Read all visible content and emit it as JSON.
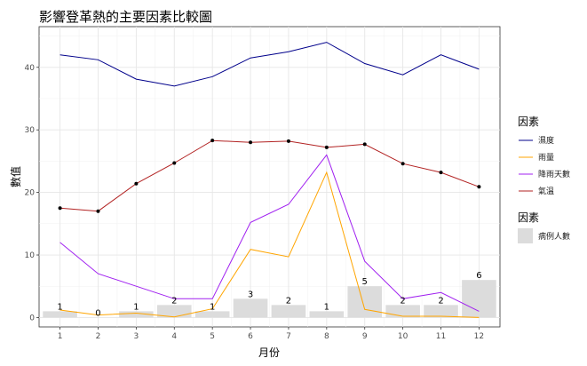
{
  "chart_data": {
    "type": "line",
    "title": "影響登革熱的主要因素比較圖",
    "xlabel": "月份",
    "ylabel": "數值",
    "x": [
      1,
      2,
      3,
      4,
      5,
      6,
      7,
      8,
      9,
      10,
      11,
      12
    ],
    "x_ticks": [
      "1",
      "2",
      "3",
      "4",
      "5",
      "6",
      "7",
      "8",
      "9",
      "10",
      "11",
      "12"
    ],
    "y_ticks": [
      "0",
      "10",
      "20",
      "30",
      "40"
    ],
    "ylim": [
      -1.5,
      46.5
    ],
    "xlim": [
      0.45,
      12.55
    ],
    "grid": true,
    "legend_position": "right",
    "line_legend_title": "因素",
    "bar_legend_title": "因素",
    "series": [
      {
        "name": "濕度",
        "color": "#00008b",
        "values": [
          42.0,
          41.2,
          38.1,
          37.0,
          38.5,
          41.5,
          42.5,
          44.0,
          40.6,
          38.8,
          42.0,
          39.7
        ],
        "markers": false
      },
      {
        "name": "雨量",
        "color": "#ffa500",
        "values": [
          1.2,
          0.4,
          0.7,
          0.1,
          1.4,
          10.9,
          9.7,
          23.2,
          1.3,
          0.2,
          0.2,
          0.0
        ],
        "markers": false
      },
      {
        "name": "降雨天數",
        "color": "#a020f0",
        "values": [
          12.0,
          7.0,
          5.0,
          3.0,
          3.0,
          15.2,
          18.1,
          26.0,
          9.0,
          3.0,
          4.0,
          1.0
        ],
        "markers": false
      },
      {
        "name": "氣溫",
        "color": "#b22222",
        "values": [
          17.5,
          17.0,
          21.4,
          24.7,
          28.3,
          28.0,
          28.2,
          27.2,
          27.7,
          24.6,
          23.2,
          20.9
        ],
        "markers": true
      }
    ],
    "bars": {
      "name": "病例人數",
      "color": "#dcdcdc",
      "values": [
        1,
        0,
        1,
        2,
        1,
        3,
        2,
        1,
        5,
        2,
        2,
        6
      ],
      "labels": [
        "1",
        "0",
        "1",
        "2",
        "1",
        "3",
        "2",
        "1",
        "5",
        "2",
        "2",
        "6"
      ]
    }
  }
}
